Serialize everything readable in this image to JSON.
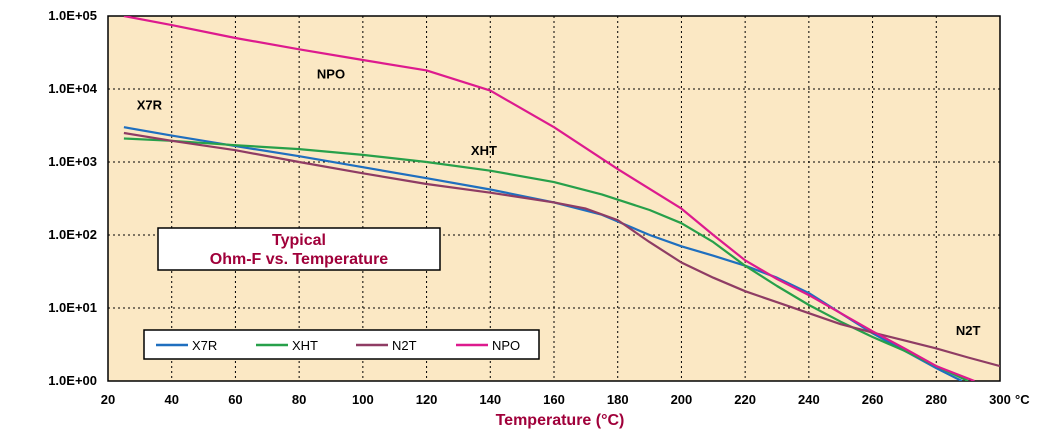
{
  "chart_data": {
    "type": "line",
    "title_lines": [
      "Typical",
      "Ohm-F vs. Temperature"
    ],
    "xlabel": "Temperature (°C)",
    "ylabel": "",
    "x_unit_suffix": "°C",
    "xlim": [
      20,
      300
    ],
    "ylim": [
      1,
      100000
    ],
    "y_scale": "log",
    "grid": true,
    "legend_position": "bottom-left",
    "x_ticks": [
      {
        "value": 20,
        "label": "20"
      },
      {
        "value": 40,
        "label": "40"
      },
      {
        "value": 60,
        "label": "60"
      },
      {
        "value": 80,
        "label": "80"
      },
      {
        "value": 100,
        "label": "100"
      },
      {
        "value": 120,
        "label": "120"
      },
      {
        "value": 140,
        "label": "140"
      },
      {
        "value": 160,
        "label": "160"
      },
      {
        "value": 180,
        "label": "180"
      },
      {
        "value": 200,
        "label": "200"
      },
      {
        "value": 220,
        "label": "220"
      },
      {
        "value": 240,
        "label": "240"
      },
      {
        "value": 260,
        "label": "260"
      },
      {
        "value": 280,
        "label": "280"
      },
      {
        "value": 300,
        "label": "300"
      }
    ],
    "y_ticks": [
      {
        "value": 1,
        "label": "1.0E+00"
      },
      {
        "value": 10,
        "label": "1.0E+01"
      },
      {
        "value": 100,
        "label": "1.0E+02"
      },
      {
        "value": 1000,
        "label": "1.0E+03"
      },
      {
        "value": 10000,
        "label": "1.0E+04"
      },
      {
        "value": 100000,
        "label": "1.0E+05"
      }
    ],
    "series": [
      {
        "name": "X7R",
        "color": "#1f6fbf",
        "label_anchor": {
          "x": 33,
          "y": 5200
        },
        "points": [
          [
            25,
            3000
          ],
          [
            40,
            2300
          ],
          [
            60,
            1650
          ],
          [
            80,
            1200
          ],
          [
            100,
            850
          ],
          [
            120,
            600
          ],
          [
            140,
            420
          ],
          [
            160,
            280
          ],
          [
            175,
            190
          ],
          [
            190,
            100
          ],
          [
            200,
            70
          ],
          [
            210,
            52
          ],
          [
            220,
            38
          ],
          [
            230,
            26
          ],
          [
            240,
            16
          ],
          [
            250,
            8.5
          ],
          [
            260,
            4.5
          ],
          [
            270,
            2.6
          ],
          [
            280,
            1.5
          ],
          [
            288,
            1.0
          ]
        ]
      },
      {
        "name": "XHT",
        "color": "#27a04a",
        "label_anchor": {
          "x": 138,
          "y": 1250
        },
        "points": [
          [
            25,
            2100
          ],
          [
            40,
            1950
          ],
          [
            60,
            1700
          ],
          [
            80,
            1500
          ],
          [
            100,
            1250
          ],
          [
            120,
            1000
          ],
          [
            140,
            760
          ],
          [
            160,
            530
          ],
          [
            175,
            360
          ],
          [
            190,
            220
          ],
          [
            200,
            145
          ],
          [
            210,
            80
          ],
          [
            220,
            38
          ],
          [
            230,
            20
          ],
          [
            240,
            11
          ],
          [
            250,
            6.5
          ],
          [
            260,
            4
          ],
          [
            270,
            2.6
          ],
          [
            280,
            1.6
          ],
          [
            290,
            1.0
          ]
        ]
      },
      {
        "name": "N2T",
        "color": "#8f3c64",
        "label_anchor": {
          "x": 290,
          "y": 4.3
        },
        "points": [
          [
            25,
            2500
          ],
          [
            40,
            1950
          ],
          [
            60,
            1450
          ],
          [
            80,
            1000
          ],
          [
            100,
            700
          ],
          [
            120,
            500
          ],
          [
            140,
            380
          ],
          [
            160,
            280
          ],
          [
            170,
            230
          ],
          [
            180,
            160
          ],
          [
            190,
            80
          ],
          [
            200,
            42
          ],
          [
            210,
            26
          ],
          [
            220,
            17
          ],
          [
            230,
            12
          ],
          [
            240,
            8.5
          ],
          [
            250,
            6
          ],
          [
            260,
            4.6
          ],
          [
            270,
            3.6
          ],
          [
            280,
            2.8
          ],
          [
            290,
            2.1
          ],
          [
            300,
            1.6
          ]
        ]
      },
      {
        "name": "NPO",
        "color": "#dd1a8e",
        "label_anchor": {
          "x": 90,
          "y": 14000
        },
        "points": [
          [
            25,
            100000
          ],
          [
            40,
            75000
          ],
          [
            60,
            50000
          ],
          [
            80,
            35000
          ],
          [
            100,
            25000
          ],
          [
            120,
            18000
          ],
          [
            140,
            9500
          ],
          [
            160,
            3000
          ],
          [
            180,
            800
          ],
          [
            200,
            230
          ],
          [
            210,
            100
          ],
          [
            220,
            45
          ],
          [
            230,
            25
          ],
          [
            240,
            15
          ],
          [
            250,
            8.5
          ],
          [
            260,
            4.8
          ],
          [
            270,
            2.8
          ],
          [
            280,
            1.6
          ],
          [
            292,
            1.0
          ]
        ]
      }
    ]
  }
}
